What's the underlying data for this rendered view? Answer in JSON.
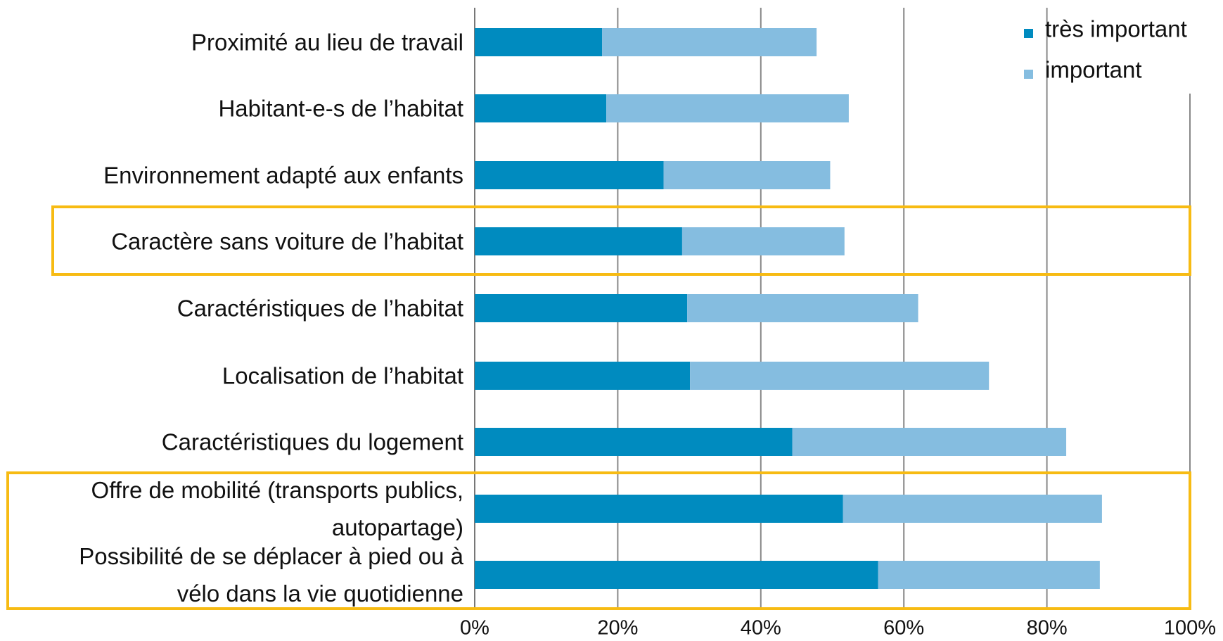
{
  "chart_data": {
    "type": "stacked-bar-horizontal",
    "categories": [
      "Proximité au lieu de travail",
      "Habitant-e-s de l’habitat",
      "Environnement adapté aux enfants",
      "Caractère sans voiture de l’habitat",
      "Caractéristiques de l’habitat",
      "Localisation de l’habitat",
      "Caractéristiques du logement",
      "Offre de mobilité (transports publics,\nautopartage)",
      "Possibilité de se déplacer à pied ou à\nvélo dans la vie quotidienne"
    ],
    "series": [
      {
        "name": "très important",
        "color": "#008bbf",
        "values": [
          17.8,
          18.4,
          26.4,
          29.0,
          29.7,
          30.1,
          44.4,
          51.5,
          56.4
        ]
      },
      {
        "name": "important",
        "color": "#85bde0",
        "values": [
          30.0,
          33.9,
          23.3,
          22.7,
          32.3,
          41.8,
          38.3,
          36.2,
          31.0
        ]
      }
    ],
    "xlim": [
      0,
      100
    ],
    "xticks": [
      {
        "value": 0,
        "label": "0%"
      },
      {
        "value": 20,
        "label": "20%"
      },
      {
        "value": 40,
        "label": "40%"
      },
      {
        "value": 60,
        "label": "60%"
      },
      {
        "value": 80,
        "label": "80%"
      },
      {
        "value": 100,
        "label": "100%"
      }
    ],
    "grid": true,
    "legend": "top-right"
  }
}
